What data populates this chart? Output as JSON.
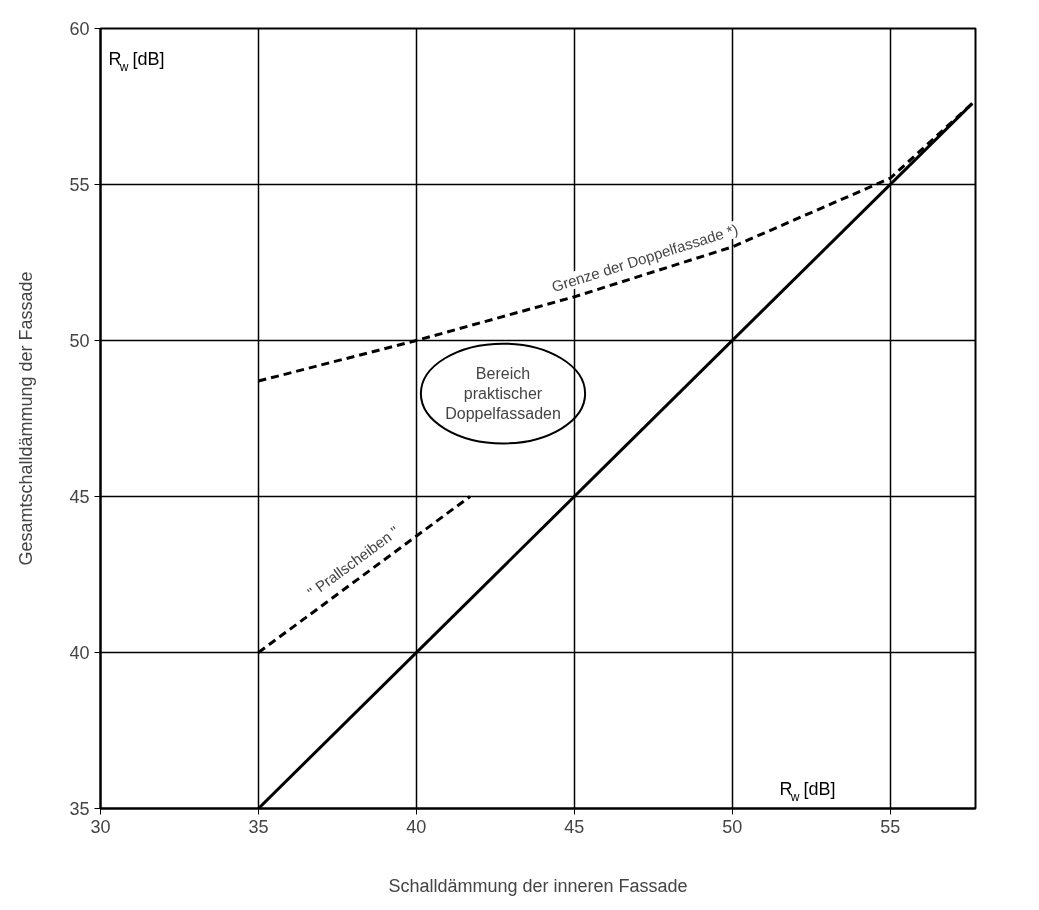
{
  "chart_data": {
    "type": "line",
    "xlabel": "Schalldämmung der inneren Fassade",
    "ylabel": "Gesamtschalldämmung der Fassade",
    "xlim": [
      30,
      57.7
    ],
    "ylim": [
      35,
      60
    ],
    "xticks": [
      30,
      35,
      40,
      45,
      50,
      55
    ],
    "yticks": [
      35,
      40,
      45,
      50,
      55,
      60
    ],
    "grid": true,
    "series": [
      {
        "color": "#000000",
        "line_style": "solid",
        "x": [
          35,
          57.6
        ],
        "values": [
          35,
          57.6
        ]
      },
      {
        "name": "Grenze der Doppelfassade *)",
        "color": "#000000",
        "line_style": "dashed",
        "x": [
          35,
          40,
          45,
          50,
          55,
          57.6
        ],
        "values": [
          48.7,
          50,
          51.4,
          53,
          55.2,
          57.6
        ]
      },
      {
        "name": "\" Prallscheiben \"",
        "color": "#000000",
        "line_style": "dashed",
        "x": [
          35,
          41.7
        ],
        "values": [
          40,
          45
        ]
      }
    ],
    "annotations": [
      "R$_{w}$ [dB]",
      "R$_{w}$ [dB]",
      "Bereich praktischer Doppelfassaden"
    ]
  }
}
